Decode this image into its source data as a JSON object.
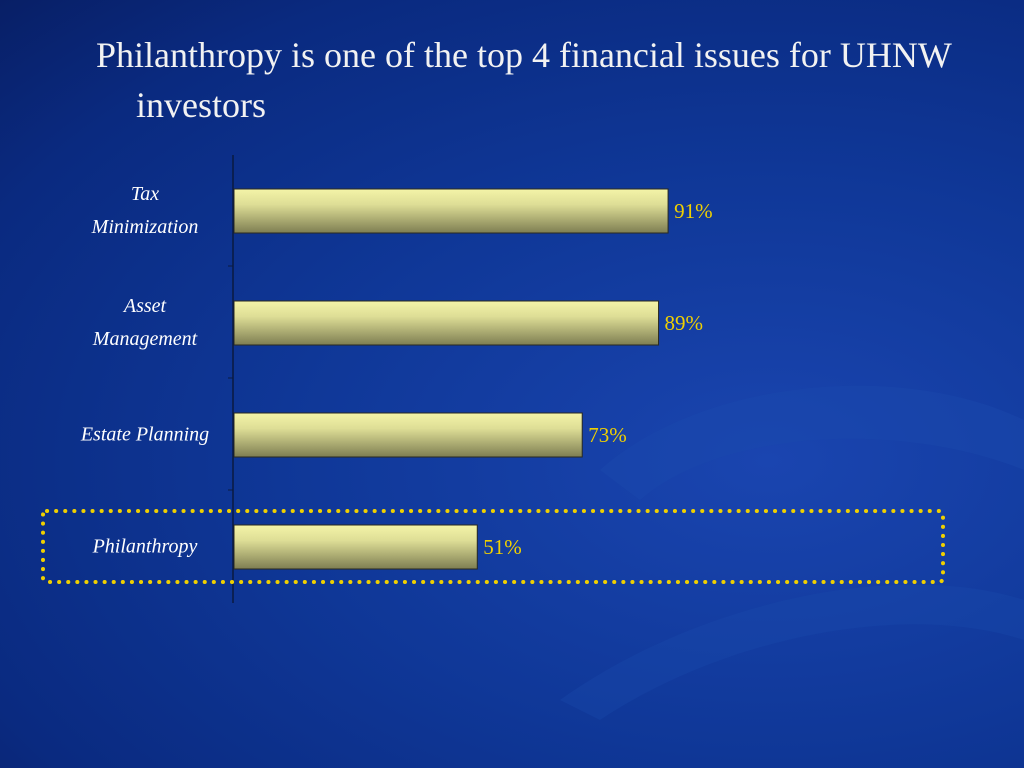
{
  "chart_data": {
    "type": "bar",
    "orientation": "horizontal",
    "title": "Philanthropy is one of the top 4 financial issues for UHNW investors",
    "categories": [
      "Tax\nMinimization",
      "Asset\nManagement",
      "Estate Planning",
      "Philanthropy"
    ],
    "values": [
      91,
      89,
      73,
      51
    ],
    "value_labels": [
      "91%",
      "89%",
      "73%",
      "51%"
    ],
    "color": "#d8d890",
    "xlim": [
      0,
      100
    ]
  }
}
